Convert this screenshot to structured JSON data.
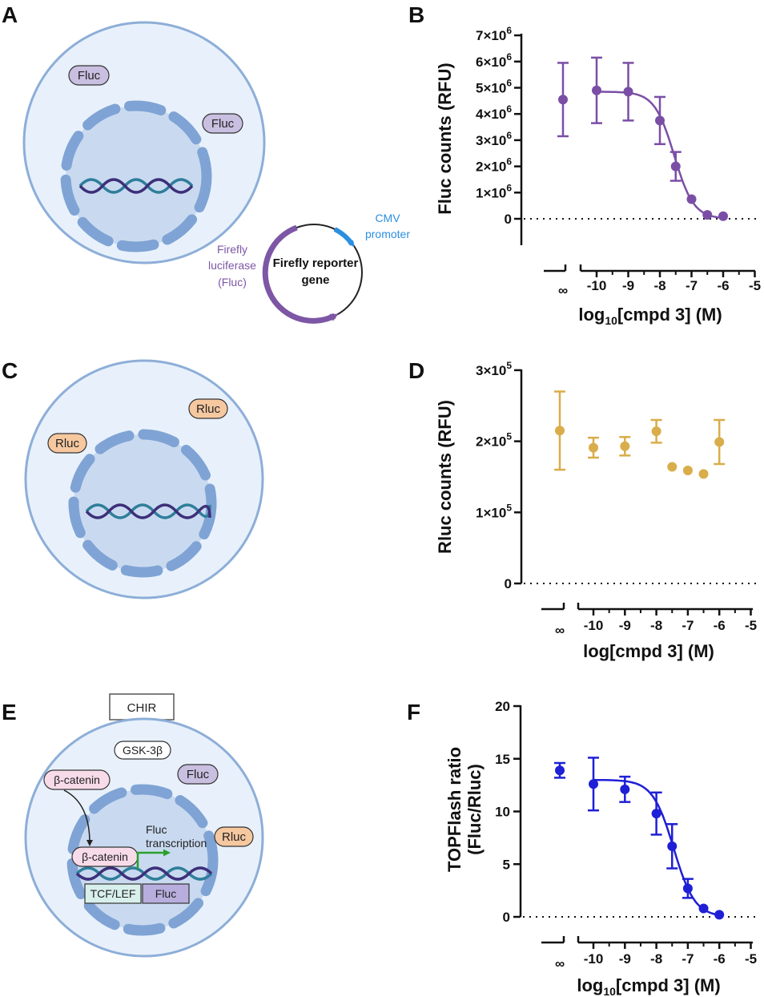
{
  "panels": {
    "A": {
      "letter": "A",
      "labels": {
        "fluc_1": "Fluc",
        "fluc_2": "Fluc"
      },
      "plasmid": {
        "center_text_1": "Firefly reporter",
        "center_text_2": "gene",
        "cmv_1": "CMV",
        "cmv_2": "promoter",
        "fluc_1": "Firefly",
        "fluc_2": "luciferase",
        "fluc_3": "(Fluc)"
      },
      "colors": {
        "cell": "#e8f1fb",
        "nucleus": "#c9daf0",
        "membrane": "#8daed8",
        "fluc_tag": "#c9bfe0",
        "plasmid_purple": "#7d56a5",
        "cmv_blue": "#2b8fe0"
      }
    },
    "B": {
      "letter": "B",
      "ylabel": "Fluc counts (RFU)",
      "xlabel_pre": "log",
      "xlabel_sub": "10",
      "xlabel_post": "[cmpd 3] (M)",
      "inf_label": "∞",
      "yticks": [
        {
          "v": 0,
          "mant": "0",
          "exp": ""
        },
        {
          "v": 1,
          "mant": "1×10",
          "exp": "6"
        },
        {
          "v": 2,
          "mant": "2×10",
          "exp": "6"
        },
        {
          "v": 3,
          "mant": "3×10",
          "exp": "6"
        },
        {
          "v": 4,
          "mant": "4×10",
          "exp": "6"
        },
        {
          "v": 5,
          "mant": "5×10",
          "exp": "6"
        },
        {
          "v": 6,
          "mant": "6×10",
          "exp": "6"
        },
        {
          "v": 7,
          "mant": "7×10",
          "exp": "6"
        }
      ],
      "xticks": [
        "-10",
        "-9",
        "-8",
        "-7",
        "-6",
        "-5"
      ]
    },
    "C": {
      "letter": "C",
      "labels": {
        "rluc_1": "Rluc",
        "rluc_2": "Rluc"
      },
      "colors": {
        "rluc_tag": "#f6c8a0"
      }
    },
    "D": {
      "letter": "D",
      "ylabel": "Rluc counts (RFU)",
      "xlabel": "log[cmpd 3] (M)",
      "inf_label": "∞",
      "yticks": [
        {
          "v": 0,
          "mant": "0",
          "exp": ""
        },
        {
          "v": 1,
          "mant": "1×10",
          "exp": "5"
        },
        {
          "v": 2,
          "mant": "2×10",
          "exp": "5"
        },
        {
          "v": 3,
          "mant": "3×10",
          "exp": "5"
        }
      ],
      "xticks": [
        "-10",
        "-9",
        "-8",
        "-7",
        "-6",
        "-5"
      ]
    },
    "E": {
      "letter": "E",
      "chir": "CHIR",
      "gsk": "GSK-3β",
      "bcat_1": "β-catenin",
      "bcat_2": "β-catenin",
      "fluc": "Fluc",
      "rluc": "Rluc",
      "transcription_1": "Fluc",
      "transcription_2": "transcription",
      "tcf": "TCF/LEF",
      "fluc_box": "Fluc",
      "colors": {
        "bcat_tag": "#f8dbe8",
        "tcf_box": "#d8f0ec",
        "fluc_box": "#b8aede"
      }
    },
    "F": {
      "letter": "F",
      "ylabel_1": "TOPFlash ratio",
      "ylabel_2": "(Fluc/Rluc)",
      "xlabel_pre": "log",
      "xlabel_sub": "10",
      "xlabel_post": "[cmpd 3] (M)",
      "inf_label": "∞",
      "yticks": [
        "0",
        "5",
        "10",
        "15",
        "20"
      ],
      "xticks": [
        "-10",
        "-9",
        "-8",
        "-7",
        "-6",
        "-5"
      ]
    }
  },
  "chart_data": [
    {
      "id": "B",
      "type": "scatter",
      "xlabel": "log10[cmpd 3] (M)",
      "ylabel": "Fluc counts (RFU)",
      "xlim": [
        -10.5,
        -5
      ],
      "ylim": [
        0,
        7000000
      ],
      "ylim_min": -1000000,
      "color": "#7b4ea6",
      "control": {
        "x": "∞",
        "y": 4550000,
        "err": 1400000
      },
      "points": [
        {
          "x": -10.0,
          "y": 4900000,
          "err": 1250000
        },
        {
          "x": -9.0,
          "y": 4850000,
          "err": 1100000
        },
        {
          "x": -8.0,
          "y": 3750000,
          "err": 900000
        },
        {
          "x": -7.5,
          "y": 2000000,
          "err": 550000
        },
        {
          "x": -7.0,
          "y": 750000,
          "err": 0
        },
        {
          "x": -6.5,
          "y": 150000,
          "err": 0
        },
        {
          "x": -6.0,
          "y": 100000,
          "err": 0
        }
      ],
      "fit": {
        "top": 4850000,
        "bottom": 0,
        "logIC50": -7.55,
        "hill": 1.4,
        "x_range": [
          -10.0,
          -6.0
        ]
      }
    },
    {
      "id": "D",
      "type": "scatter",
      "xlabel": "log[cmpd 3] (M)",
      "ylabel": "Rluc counts (RFU)",
      "xlim": [
        -10.5,
        -5
      ],
      "ylim": [
        0,
        300000
      ],
      "color": "#d9ad4a",
      "control": {
        "x": "∞",
        "y": 215000,
        "err": 55000
      },
      "points": [
        {
          "x": -10.0,
          "y": 191000,
          "err": 14000
        },
        {
          "x": -9.0,
          "y": 193000,
          "err": 13000
        },
        {
          "x": -8.0,
          "y": 214000,
          "err": 16000
        },
        {
          "x": -7.5,
          "y": 164000,
          "err": 0
        },
        {
          "x": -7.0,
          "y": 159000,
          "err": 0
        },
        {
          "x": -6.5,
          "y": 154000,
          "err": 0
        },
        {
          "x": -6.0,
          "y": 199000,
          "err": 31000
        }
      ]
    },
    {
      "id": "F",
      "type": "scatter",
      "xlabel": "log10[cmpd 3] (M)",
      "ylabel": "TOPFlash ratio (Fluc/Rluc)",
      "xlim": [
        -10.5,
        -5
      ],
      "ylim": [
        0,
        20
      ],
      "color": "#1f1fd6",
      "control": {
        "x": "∞",
        "y": 13.9,
        "err": 0.7
      },
      "points": [
        {
          "x": -10.0,
          "y": 12.6,
          "err": 2.5
        },
        {
          "x": -9.0,
          "y": 12.1,
          "err": 1.2
        },
        {
          "x": -8.0,
          "y": 9.8,
          "err": 2.0
        },
        {
          "x": -7.5,
          "y": 6.7,
          "err": 2.1
        },
        {
          "x": -7.0,
          "y": 2.7,
          "err": 0.9
        },
        {
          "x": -6.5,
          "y": 0.8,
          "err": 0
        },
        {
          "x": -6.0,
          "y": 0.2,
          "err": 0
        }
      ],
      "fit": {
        "top": 13.0,
        "bottom": 0,
        "logIC50": -7.45,
        "hill": 1.3,
        "x_range": [
          -10.0,
          -6.0
        ]
      }
    }
  ]
}
